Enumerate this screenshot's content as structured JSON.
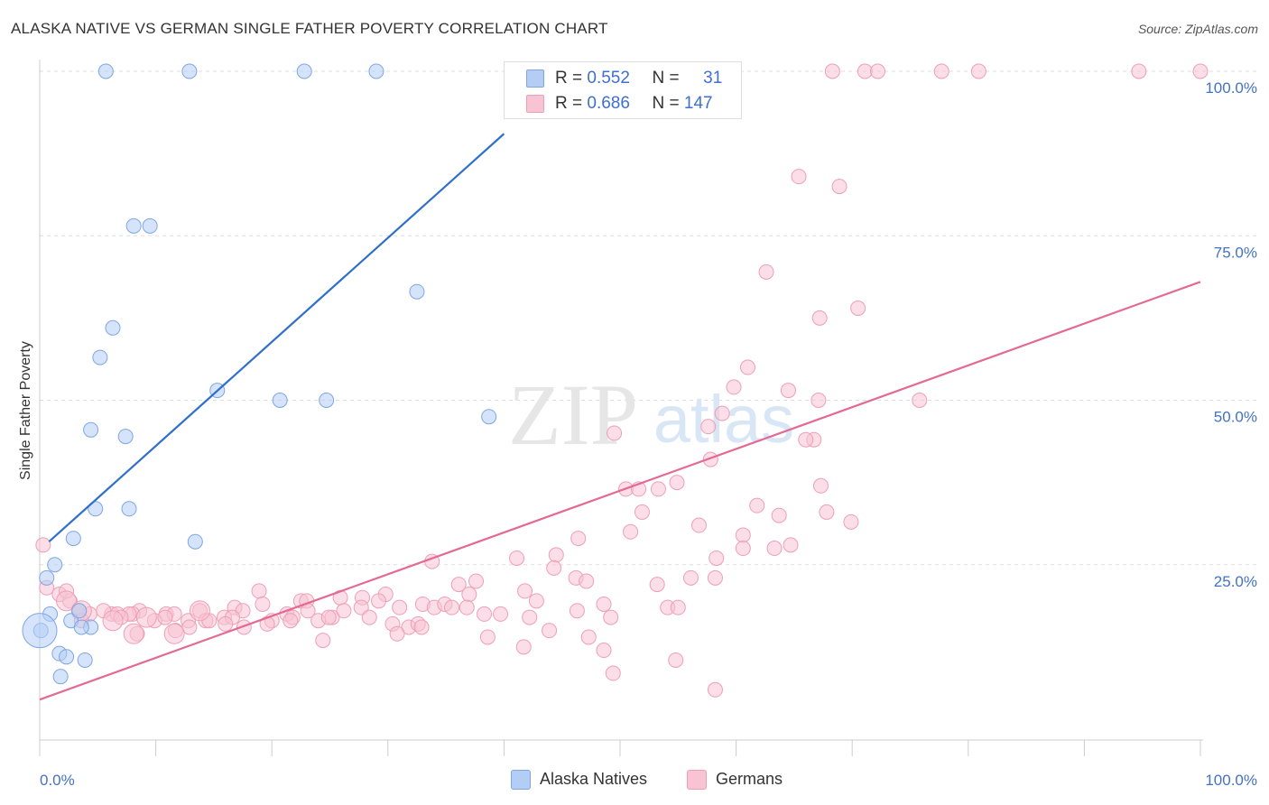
{
  "title": "ALASKA NATIVE VS GERMAN SINGLE FATHER POVERTY CORRELATION CHART",
  "source": "Source: ZipAtlas.com",
  "watermark": {
    "zip": "ZIP",
    "atlas": "atlas"
  },
  "stats": {
    "alaska": {
      "r_label": "R =",
      "r_value": "0.552",
      "n_label": "N =",
      "n_value": "31"
    },
    "germans": {
      "r_label": "R =",
      "r_value": "0.686",
      "n_label": "N =",
      "n_value": "147"
    }
  },
  "legend": {
    "alaska": "Alaska Natives",
    "germans": "Germans"
  },
  "colors": {
    "alaska_fill": "#b3cdf5",
    "alaska_stroke": "#7fa6e3",
    "alaska_line": "#2e6fce",
    "germans_fill": "#f8c3d3",
    "germans_stroke": "#ee9fb7",
    "germans_line": "#e46a93",
    "tick_label": "#4472c4",
    "grid": "#dddddd"
  },
  "chart_data": {
    "type": "scatter",
    "title": "ALASKA NATIVE VS GERMAN SINGLE FATHER POVERTY CORRELATION CHART",
    "xlabel": "",
    "ylabel": "Single Father Poverty",
    "xlim": [
      0,
      100
    ],
    "ylim": [
      0,
      100
    ],
    "x_tick_labels": [
      "0.0%",
      "100.0%"
    ],
    "y_ticks": [
      25,
      50,
      75,
      100
    ],
    "y_tick_labels": [
      "25.0%",
      "50.0%",
      "75.0%",
      "100.0%"
    ],
    "series": [
      {
        "name": "Alaska Natives",
        "r": 0.552,
        "n": 31,
        "trend": {
          "x": [
            0.8,
            40.0
          ],
          "y": [
            28.5,
            90.5
          ]
        },
        "points": [
          [
            5.7,
            100
          ],
          [
            12.9,
            100
          ],
          [
            22.8,
            100
          ],
          [
            29.0,
            100
          ],
          [
            8.1,
            76.5
          ],
          [
            9.5,
            76.5
          ],
          [
            32.5,
            66.5
          ],
          [
            6.3,
            61
          ],
          [
            5.2,
            56.5
          ],
          [
            15.3,
            51.5
          ],
          [
            20.7,
            50
          ],
          [
            24.7,
            50
          ],
          [
            38.7,
            47.5
          ],
          [
            4.4,
            45.5
          ],
          [
            7.4,
            44.5
          ],
          [
            4.8,
            33.5
          ],
          [
            7.7,
            33.5
          ],
          [
            2.9,
            29
          ],
          [
            13.4,
            28.5
          ],
          [
            1.3,
            25
          ],
          [
            0.6,
            23
          ],
          [
            0.9,
            17.5
          ],
          [
            2.7,
            16.5
          ],
          [
            3.4,
            18
          ],
          [
            4.4,
            15.5
          ],
          [
            3.6,
            15.5
          ],
          [
            0.1,
            15
          ],
          [
            1.7,
            11.5
          ],
          [
            2.3,
            11
          ],
          [
            3.9,
            10.5
          ],
          [
            1.8,
            8
          ]
        ],
        "big_point": [
          0.0,
          15
        ]
      },
      {
        "name": "Germans",
        "r": 0.686,
        "n": 147,
        "trend": {
          "x": [
            0.0,
            100.0
          ],
          "y": [
            4.5,
            68.0
          ]
        },
        "points": [
          [
            68.3,
            100
          ],
          [
            71.1,
            100
          ],
          [
            72.2,
            100
          ],
          [
            77.7,
            100
          ],
          [
            80.9,
            100
          ],
          [
            94.7,
            100
          ],
          [
            100,
            100
          ],
          [
            65.4,
            84
          ],
          [
            68.9,
            82.5
          ],
          [
            62.6,
            69.5
          ],
          [
            70.5,
            64
          ],
          [
            67.2,
            62.5
          ],
          [
            61.0,
            55
          ],
          [
            59.8,
            52
          ],
          [
            64.5,
            51.5
          ],
          [
            67.1,
            50
          ],
          [
            75.8,
            50
          ],
          [
            58.8,
            48
          ],
          [
            57.6,
            46
          ],
          [
            49.5,
            45
          ],
          [
            66.7,
            44
          ],
          [
            66.0,
            44
          ],
          [
            57.8,
            41
          ],
          [
            54.9,
            37.5
          ],
          [
            67.3,
            37
          ],
          [
            50.5,
            36.5
          ],
          [
            51.6,
            36.5
          ],
          [
            53.3,
            36.5
          ],
          [
            61.8,
            34
          ],
          [
            51.9,
            33
          ],
          [
            63.7,
            32.5
          ],
          [
            67.8,
            33
          ],
          [
            69.9,
            31.5
          ],
          [
            56.8,
            31
          ],
          [
            50.9,
            30
          ],
          [
            46.4,
            29
          ],
          [
            60.6,
            29.5
          ],
          [
            63.3,
            27.5
          ],
          [
            64.7,
            28
          ],
          [
            60.6,
            27.5
          ],
          [
            44.5,
            26.5
          ],
          [
            41.1,
            26
          ],
          [
            33.8,
            25.5
          ],
          [
            58.3,
            26
          ],
          [
            44.3,
            24.5
          ],
          [
            46.2,
            23
          ],
          [
            47.1,
            22.5
          ],
          [
            56.1,
            23
          ],
          [
            58.2,
            23
          ],
          [
            53.2,
            22
          ],
          [
            41.8,
            21
          ],
          [
            37.6,
            22.5
          ],
          [
            36.1,
            22
          ],
          [
            37.0,
            20.5
          ],
          [
            18.9,
            21
          ],
          [
            25.9,
            20
          ],
          [
            27.8,
            20
          ],
          [
            29.8,
            20.5
          ],
          [
            22.5,
            19.5
          ],
          [
            23.0,
            19.5
          ],
          [
            19.2,
            19
          ],
          [
            16.8,
            18.5
          ],
          [
            17.5,
            18
          ],
          [
            13.8,
            18
          ],
          [
            10.9,
            17.5
          ],
          [
            11.6,
            17.5
          ],
          [
            8.6,
            18
          ],
          [
            8.0,
            17.5
          ],
          [
            7.7,
            17.5
          ],
          [
            6.2,
            17.5
          ],
          [
            5.5,
            18
          ],
          [
            4.3,
            17.5
          ],
          [
            3.4,
            18
          ],
          [
            2.6,
            19.5
          ],
          [
            1.7,
            20.5
          ],
          [
            2.3,
            21
          ],
          [
            0.6,
            21.5
          ],
          [
            0.3,
            28
          ],
          [
            3.6,
            16.5
          ],
          [
            6.7,
            17.5
          ],
          [
            7.0,
            17
          ],
          [
            9.9,
            16.5
          ],
          [
            10.8,
            17
          ],
          [
            12.8,
            16.5
          ],
          [
            14.3,
            16.5
          ],
          [
            15.9,
            17
          ],
          [
            16.6,
            17
          ],
          [
            20.0,
            16.5
          ],
          [
            21.3,
            17.5
          ],
          [
            21.8,
            17
          ],
          [
            23.1,
            18
          ],
          [
            24.0,
            16.5
          ],
          [
            25.2,
            17
          ],
          [
            26.2,
            18
          ],
          [
            27.7,
            18.5
          ],
          [
            28.4,
            17
          ],
          [
            29.2,
            19.5
          ],
          [
            30.4,
            16
          ],
          [
            31.0,
            18.5
          ],
          [
            31.8,
            15.5
          ],
          [
            33.0,
            19
          ],
          [
            34.0,
            18.5
          ],
          [
            34.9,
            19
          ],
          [
            35.5,
            18.5
          ],
          [
            36.8,
            18.5
          ],
          [
            38.3,
            17.5
          ],
          [
            39.7,
            17.5
          ],
          [
            42.2,
            17
          ],
          [
            42.8,
            19.5
          ],
          [
            46.3,
            18
          ],
          [
            48.6,
            19
          ],
          [
            49.2,
            17
          ],
          [
            54.1,
            18.5
          ],
          [
            55.0,
            18.5
          ],
          [
            21.6,
            16.5
          ],
          [
            24.9,
            17
          ],
          [
            19.6,
            16
          ],
          [
            14.6,
            16.5
          ],
          [
            16.0,
            16
          ],
          [
            12.9,
            15.5
          ],
          [
            11.7,
            15
          ],
          [
            8.4,
            14.5
          ],
          [
            17.6,
            15.5
          ],
          [
            30.8,
            14.5
          ],
          [
            32.6,
            16
          ],
          [
            32.9,
            15.5
          ],
          [
            24.4,
            13.5
          ],
          [
            41.7,
            12.5
          ],
          [
            48.6,
            12
          ],
          [
            47.3,
            14
          ],
          [
            38.6,
            14
          ],
          [
            43.9,
            15
          ],
          [
            49.4,
            8.5
          ],
          [
            54.8,
            10.5
          ],
          [
            58.2,
            6
          ]
        ],
        "large_points": [
          [
            2.3,
            19.5
          ],
          [
            8.1,
            14.5
          ],
          [
            11.6,
            14.5
          ],
          [
            13.8,
            18
          ],
          [
            3.6,
            18
          ],
          [
            6.3,
            16.5
          ],
          [
            9.2,
            17
          ]
        ]
      }
    ]
  }
}
